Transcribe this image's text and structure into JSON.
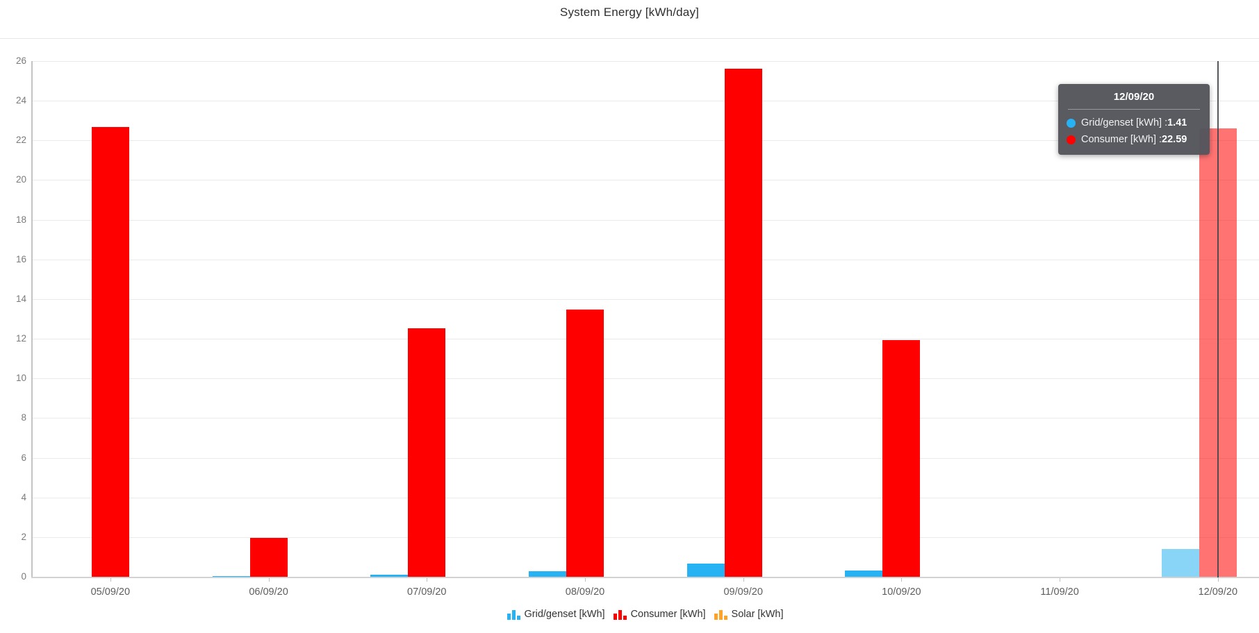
{
  "title": "System Energy [kWh/day]",
  "chart_data": {
    "type": "bar",
    "title": "System Energy [kWh/day]",
    "categories": [
      "05/09/20",
      "06/09/20",
      "07/09/20",
      "08/09/20",
      "09/09/20",
      "10/09/20",
      "11/09/20",
      "12/09/20"
    ],
    "series": [
      {
        "name": "Grid/genset [kWh]",
        "color": "#26b2f3",
        "values": [
          0,
          0.04,
          0.1,
          0.28,
          0.66,
          0.3,
          0,
          1.41
        ]
      },
      {
        "name": "Consumer [kWh]",
        "color": "#ff0000",
        "values": [
          22.67,
          1.96,
          12.53,
          13.47,
          25.61,
          11.93,
          0,
          22.59
        ]
      },
      {
        "name": "Solar [kWh]",
        "color": "#ffa226",
        "values": [
          0,
          0,
          0,
          0,
          0,
          0,
          0,
          0
        ]
      }
    ],
    "xlabel": "",
    "ylabel": "",
    "ylim": [
      0,
      26
    ],
    "ytick_step": 2,
    "grid": true,
    "legend_position": "bottom",
    "highlighted_category": "12/09/20",
    "highlighted_index": 7
  },
  "tooltip": {
    "title": "12/09/20",
    "separator": " : ",
    "rows": [
      {
        "label": "Grid/genset [kWh]",
        "value": "1.41",
        "color": "#26b2f3"
      },
      {
        "label": "Consumer [kWh]",
        "value": "22.59",
        "color": "#ff0000"
      }
    ]
  },
  "colors": {
    "gridline": "#eaeaea",
    "axis": "#c3c3c3",
    "tooltip_bg": "#55575c",
    "crosshair": "#43464b"
  }
}
